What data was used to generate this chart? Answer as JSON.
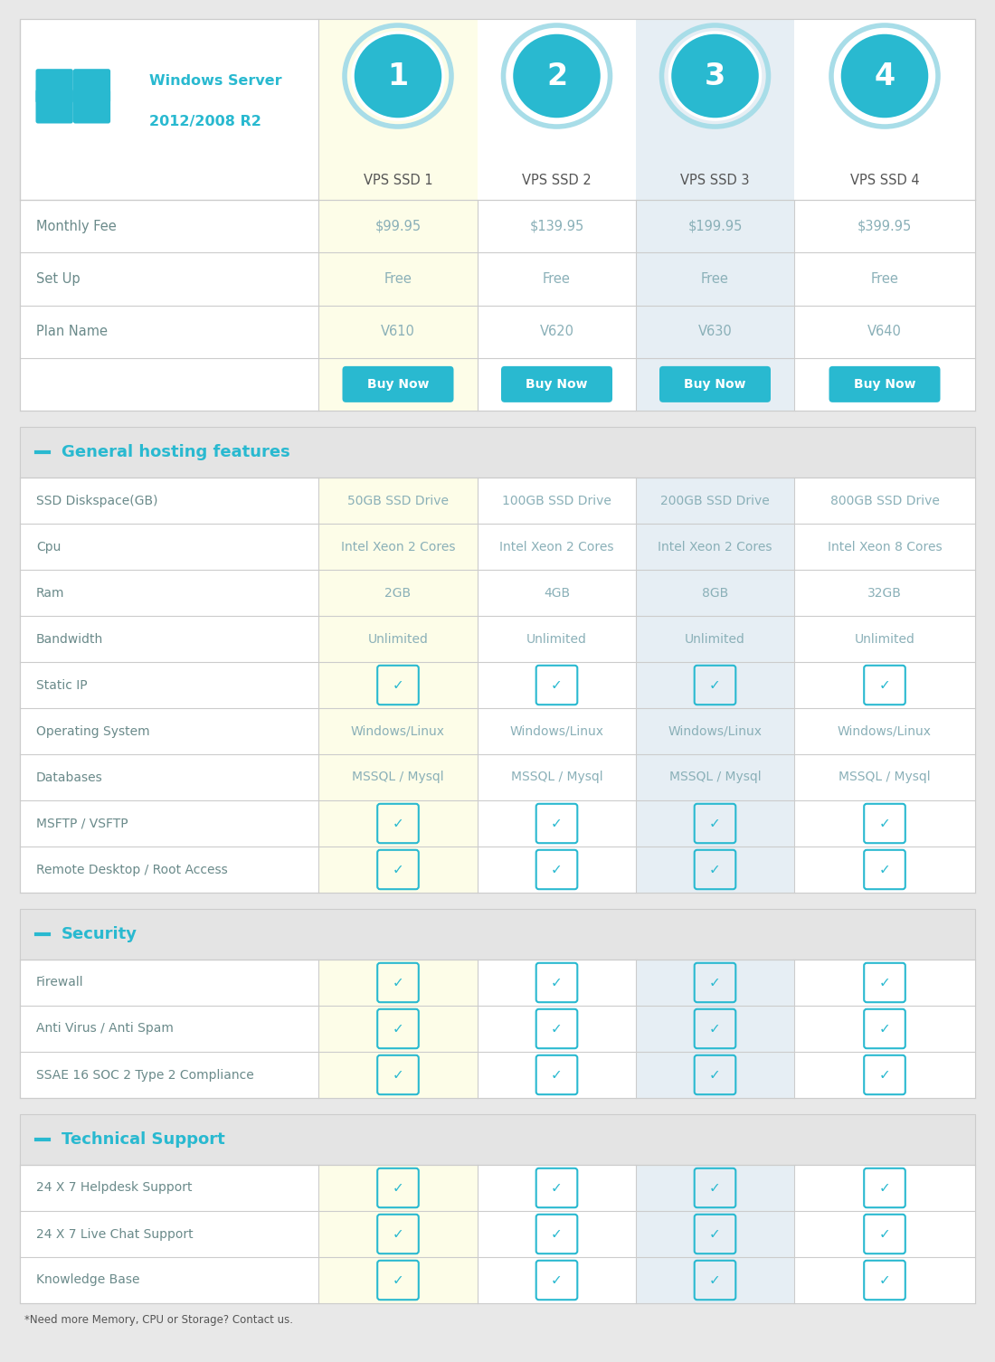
{
  "bg_color": "#e8e8e8",
  "table_bg": "#ffffff",
  "col1_bg": "#fdfde8",
  "col3_bg": "#e6eef4",
  "col2_bg": "#ffffff",
  "col4_bg": "#ffffff",
  "section_bg": "#e8e8e8",
  "cyan": "#29b9d0",
  "circle_border": "#a8dde8",
  "text_color": "#6a8a8a",
  "label_color": "#6a8a8a",
  "plan_names": [
    "VPS SSD 1",
    "VPS SSD 2",
    "VPS SSD 3",
    "VPS SSD 4"
  ],
  "plan_numbers": [
    "1",
    "2",
    "3",
    "4"
  ],
  "monthly_fee": [
    "$99.95",
    "$139.95",
    "$199.95",
    "$399.95"
  ],
  "setup": [
    "Free",
    "Free",
    "Free",
    "Free"
  ],
  "plan_name_vals": [
    "V610",
    "V620",
    "V630",
    "V640"
  ],
  "ssd_disk": [
    "50GB SSD Drive",
    "100GB SSD Drive",
    "200GB SSD Drive",
    "800GB SSD Drive"
  ],
  "cpu": [
    "Intel Xeon 2 Cores",
    "Intel Xeon 2 Cores",
    "Intel Xeon 2 Cores",
    "Intel Xeon 8 Cores"
  ],
  "ram": [
    "2GB",
    "4GB",
    "8GB",
    "32GB"
  ],
  "bandwidth": [
    "Unlimited",
    "Unlimited",
    "Unlimited",
    "Unlimited"
  ],
  "os": [
    "Windows/Linux",
    "Windows/Linux",
    "Windows/Linux",
    "Windows/Linux"
  ],
  "databases": [
    "MSSQL / Mysql",
    "MSSQL / Mysql",
    "MSSQL / Mysql",
    "MSSQL / Mysql"
  ],
  "server_text_line1": "Windows Server",
  "server_text_line2": "2012/2008 R2",
  "footnote": "*Need more Memory, CPU or Storage? Contact us.",
  "check_char": "⊞",
  "line_color": "#cccccc",
  "gap_color": "#e0e0e0"
}
